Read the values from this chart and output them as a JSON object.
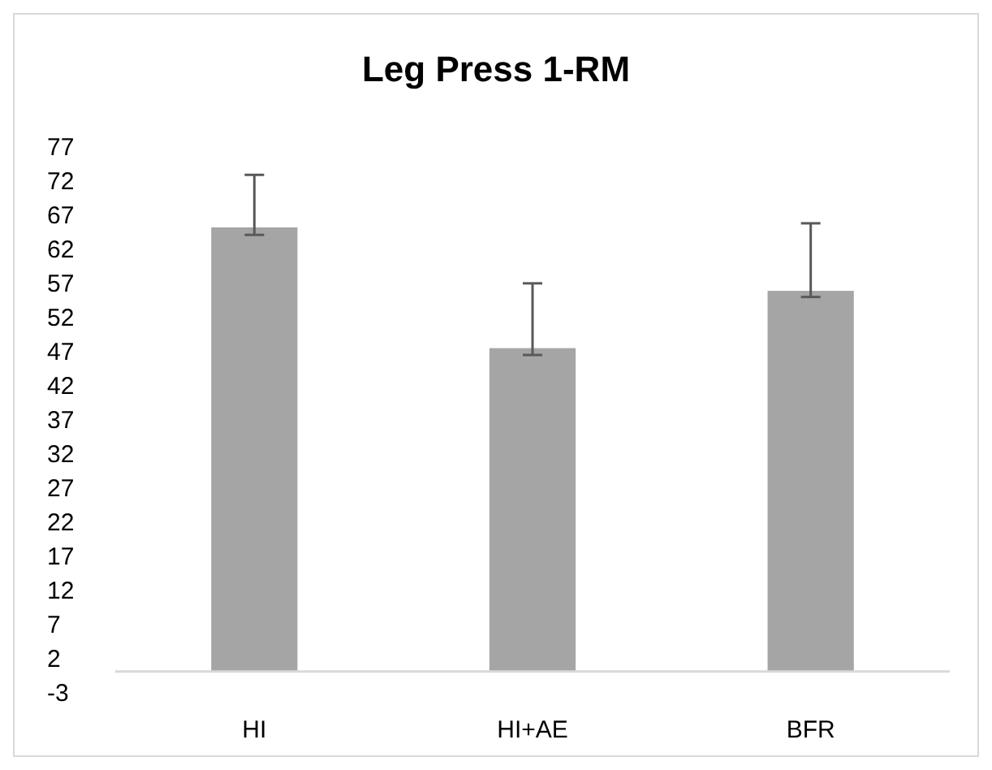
{
  "chart_data": {
    "type": "bar",
    "title": "Leg Press 1-RM",
    "categories": [
      "HI",
      "HI+AE",
      "BFR"
    ],
    "values": [
      65.1,
      47.4,
      55.8
    ],
    "errors": [
      [
        64.0,
        72.8
      ],
      [
        46.4,
        56.9
      ],
      [
        54.9,
        65.7
      ]
    ],
    "color": "#a5a5a5",
    "ylim": [
      -3,
      77
    ],
    "yticks": [
      -3,
      2,
      7,
      12,
      17,
      22,
      27,
      32,
      37,
      42,
      47,
      52,
      57,
      62,
      67,
      72,
      77
    ],
    "grid": false
  }
}
